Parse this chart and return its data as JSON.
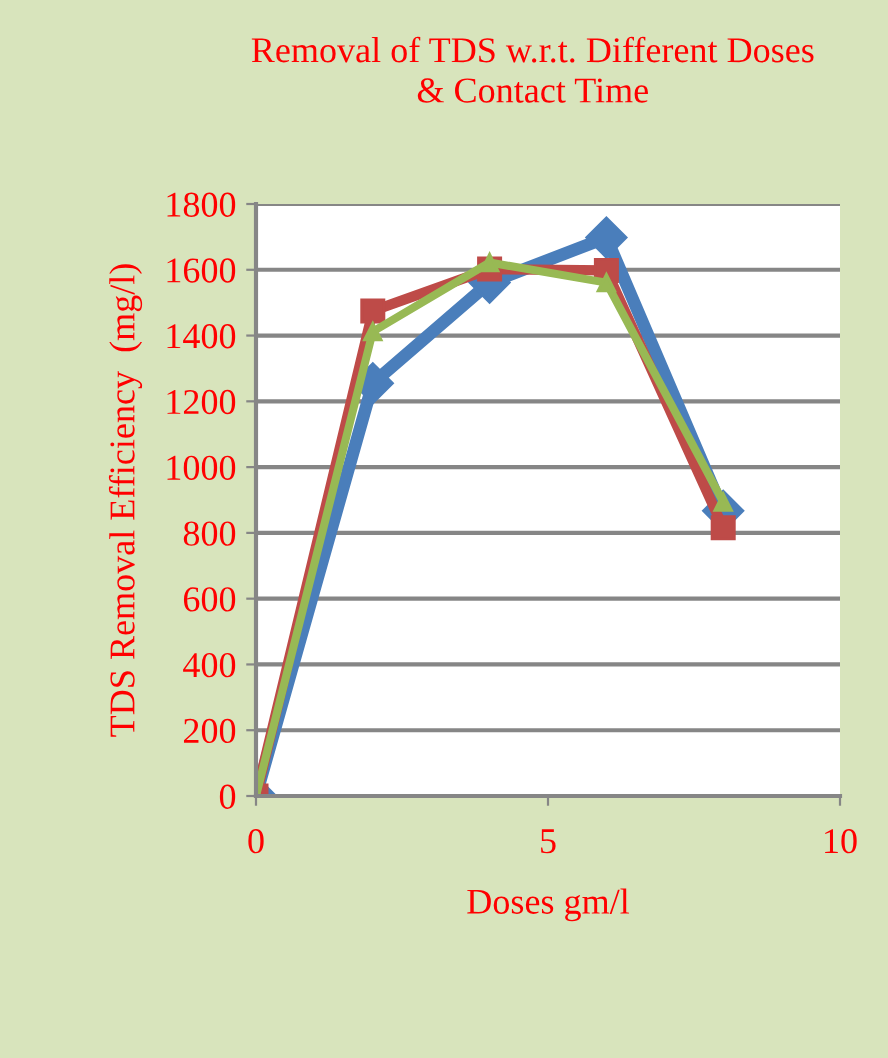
{
  "chart_data": {
    "type": "line",
    "title": "Removal of TDS w.r.t. Different Doses\n& Contact Time",
    "xlabel": "Doses gm/l",
    "ylabel": "TDS Removal Efficiency  (mg/l)",
    "x": [
      0,
      2,
      4,
      6,
      8
    ],
    "series": [
      {
        "color": "#4a7ebb",
        "marker": "diamond",
        "values": [
          0,
          1255,
          1561,
          1698,
          867
        ]
      },
      {
        "color": "#be4b48",
        "marker": "square",
        "values": [
          0,
          1475,
          1602,
          1598,
          816
        ]
      },
      {
        "color": "#98b954",
        "marker": "triangle",
        "values": [
          0,
          1412,
          1622,
          1561,
          894
        ]
      }
    ],
    "xlim": [
      0,
      10
    ],
    "xticks": [
      0,
      5,
      10
    ],
    "ylim": [
      0,
      1800
    ],
    "yticks": [
      0,
      200,
      400,
      600,
      800,
      1000,
      1200,
      1400,
      1600,
      1800
    ],
    "grid": "y",
    "legend": false
  }
}
